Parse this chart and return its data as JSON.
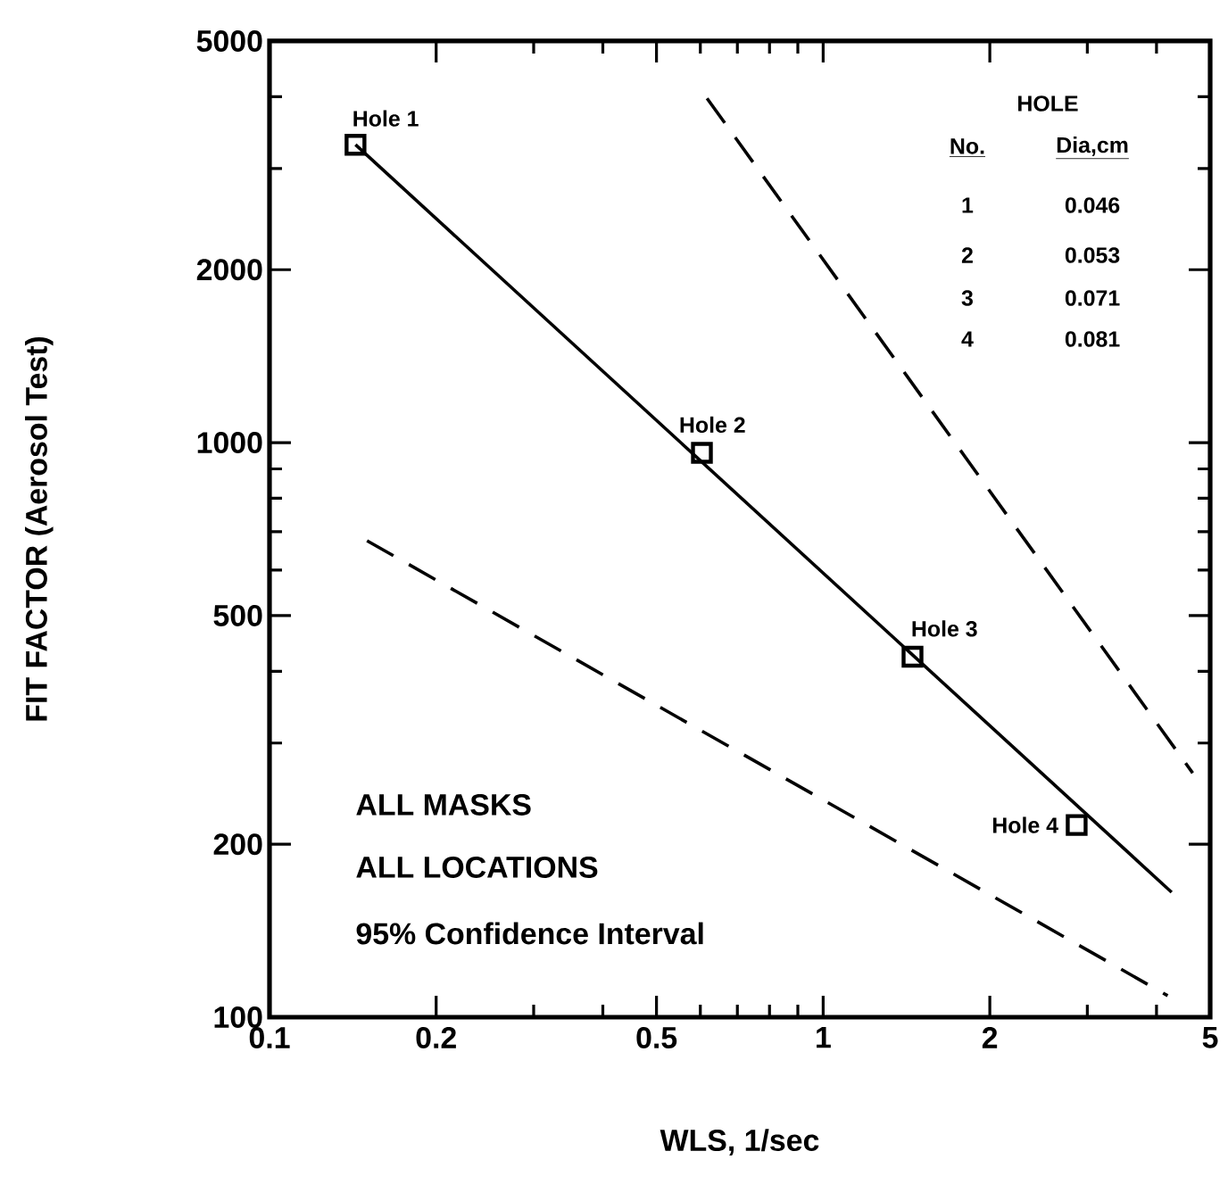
{
  "chart_data": {
    "type": "line",
    "xlabel": "WLS, 1/sec",
    "ylabel": "FIT FACTOR (Aerosol Test)",
    "log": "xy",
    "xlim": [
      0.1,
      5
    ],
    "ylim": [
      100,
      5000
    ],
    "xticks": [
      0.1,
      0.2,
      {
        "value": 0.3,
        "label": null
      },
      {
        "value": 0.4,
        "label": null
      },
      0.5,
      {
        "value": 0.6,
        "label": null
      },
      {
        "value": 0.7,
        "label": null
      },
      {
        "value": 0.8,
        "label": null
      },
      {
        "value": 0.9,
        "label": null
      },
      1,
      2,
      {
        "value": 3,
        "label": null
      },
      {
        "value": 4,
        "label": null
      },
      5
    ],
    "yticks": [
      100,
      200,
      {
        "value": 300,
        "label": null
      },
      {
        "value": 400,
        "label": null
      },
      500,
      {
        "value": 600,
        "label": null
      },
      {
        "value": 700,
        "label": null
      },
      {
        "value": 800,
        "label": null
      },
      {
        "value": 900,
        "label": null
      },
      1000,
      2000,
      {
        "value": 3000,
        "label": null
      },
      {
        "value": 4000,
        "label": null
      },
      5000
    ],
    "marker": "none",
    "series": [
      {
        "type": "scatter",
        "marker": "square",
        "color": "#000000",
        "x": [
          0.143,
          0.604,
          1.45,
          2.87
        ],
        "values": [
          3300,
          960,
          424,
          216
        ]
      },
      {
        "line_style": "solid",
        "color": "#000000",
        "x": [
          0.143,
          4.26
        ],
        "values": [
          3300,
          165
        ]
      },
      {
        "line_style": "dashed",
        "color": "#000000",
        "x": [
          0.617,
          4.65
        ],
        "values": [
          3975,
          266
        ]
      },
      {
        "line_style": "dashed",
        "color": "#000000",
        "x": [
          0.15,
          4.19
        ],
        "values": [
          675,
          109
        ]
      }
    ],
    "annotations": [
      {
        "text": "Hole 1",
        "x": 0.143,
        "y": 3300
      },
      {
        "text": "Hole 2",
        "x": 0.604,
        "y": 960
      },
      {
        "text": "Hole 3",
        "x": 1.45,
        "y": 424
      },
      {
        "text": "Hole 4",
        "x": 2.87,
        "y": 216
      },
      "ALL MASKS",
      "ALL LOCATIONS",
      "95% Confidence Interval",
      "HOLE",
      "No.",
      "Dia,cm",
      "1",
      "0.046",
      "2",
      "0.053",
      "3",
      "0.071",
      "4",
      "0.081"
    ]
  }
}
